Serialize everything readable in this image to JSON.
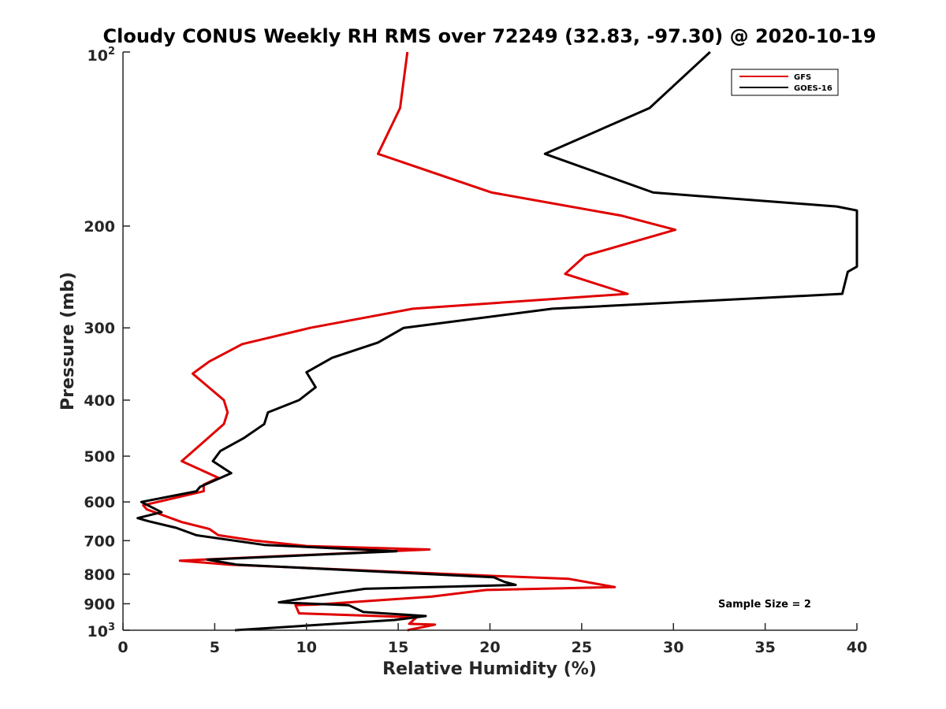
{
  "chart_data": {
    "type": "line",
    "title": "Cloudy CONUS Weekly RH RMS over 72249 (32.83, -97.30) @ 2020-10-19",
    "xlabel": "Relative Humidity (%)",
    "ylabel": "Pressure (mb)",
    "xlim": [
      0,
      40
    ],
    "ylim": [
      1000,
      100
    ],
    "y_scale": "log",
    "y_reversed": true,
    "grid": false,
    "legend_position": "top-right",
    "x_ticks": [
      "0",
      "5",
      "10",
      "15",
      "20",
      "25",
      "30",
      "35",
      "40"
    ],
    "y_ticks": [
      {
        "value": 100,
        "label": "10",
        "sup": "2"
      },
      {
        "value": 200,
        "label": "200",
        "sup": ""
      },
      {
        "value": 300,
        "label": "300",
        "sup": ""
      },
      {
        "value": 400,
        "label": "400",
        "sup": ""
      },
      {
        "value": 500,
        "label": "500",
        "sup": ""
      },
      {
        "value": 600,
        "label": "600",
        "sup": ""
      },
      {
        "value": 700,
        "label": "700",
        "sup": ""
      },
      {
        "value": 800,
        "label": "800",
        "sup": ""
      },
      {
        "value": 900,
        "label": "900",
        "sup": ""
      },
      {
        "value": 1000,
        "label": "10",
        "sup": "3"
      }
    ],
    "annotation": "Sample Size = 2",
    "series": [
      {
        "name": "GFS",
        "color": "#e00000",
        "points": [
          [
            15.5,
            100
          ],
          [
            15.1,
            125
          ],
          [
            13.9,
            150
          ],
          [
            20.1,
            175
          ],
          [
            27.2,
            192
          ],
          [
            30.1,
            203
          ],
          [
            25.2,
            225
          ],
          [
            24.1,
            242
          ],
          [
            27.5,
            262
          ],
          [
            15.8,
            278
          ],
          [
            10.2,
            300
          ],
          [
            6.5,
            320
          ],
          [
            4.7,
            343
          ],
          [
            3.8,
            360
          ],
          [
            5.5,
            400
          ],
          [
            5.7,
            420
          ],
          [
            5.5,
            440
          ],
          [
            3.2,
            510
          ],
          [
            5.2,
            545
          ],
          [
            4.4,
            560
          ],
          [
            4.4,
            575
          ],
          [
            1.1,
            608
          ],
          [
            1.3,
            618
          ],
          [
            3.2,
            650
          ],
          [
            4.7,
            668
          ],
          [
            5.2,
            685
          ],
          [
            7.2,
            700
          ],
          [
            10.0,
            715
          ],
          [
            16.7,
            725
          ],
          [
            3.1,
            758
          ],
          [
            5.8,
            770
          ],
          [
            20.0,
            805
          ],
          [
            24.3,
            815
          ],
          [
            26.8,
            842
          ],
          [
            19.8,
            852
          ],
          [
            16.8,
            875
          ],
          [
            10.5,
            903
          ],
          [
            9.4,
            905
          ],
          [
            9.6,
            935
          ],
          [
            16.0,
            950
          ],
          [
            15.6,
            975
          ],
          [
            17.0,
            978
          ],
          [
            15.5,
            1000
          ]
        ]
      },
      {
        "name": "GOES-16",
        "color": "#000000",
        "points": [
          [
            32.0,
            100
          ],
          [
            28.7,
            125
          ],
          [
            23.0,
            150
          ],
          [
            28.9,
            175
          ],
          [
            38.9,
            185
          ],
          [
            40.0,
            188
          ],
          [
            40.0,
            235
          ],
          [
            39.5,
            240
          ],
          [
            39.2,
            262
          ],
          [
            23.4,
            278
          ],
          [
            15.3,
            300
          ],
          [
            13.9,
            318
          ],
          [
            11.4,
            338
          ],
          [
            10.0,
            358
          ],
          [
            10.5,
            380
          ],
          [
            9.6,
            400
          ],
          [
            7.9,
            420
          ],
          [
            7.7,
            440
          ],
          [
            6.6,
            465
          ],
          [
            5.3,
            490
          ],
          [
            4.9,
            510
          ],
          [
            5.9,
            535
          ],
          [
            4.2,
            565
          ],
          [
            4.0,
            575
          ],
          [
            1.0,
            600
          ],
          [
            2.1,
            625
          ],
          [
            0.8,
            640
          ],
          [
            1.4,
            648
          ],
          [
            2.9,
            665
          ],
          [
            4.0,
            685
          ],
          [
            7.7,
            712
          ],
          [
            14.9,
            730
          ],
          [
            4.6,
            755
          ],
          [
            6.2,
            770
          ],
          [
            20.2,
            810
          ],
          [
            20.8,
            825
          ],
          [
            21.4,
            835
          ],
          [
            13.2,
            848
          ],
          [
            11.6,
            862
          ],
          [
            8.5,
            895
          ],
          [
            12.3,
            905
          ],
          [
            13.1,
            930
          ],
          [
            16.5,
            945
          ],
          [
            14.8,
            960
          ],
          [
            6.1,
            1000
          ]
        ]
      }
    ]
  }
}
